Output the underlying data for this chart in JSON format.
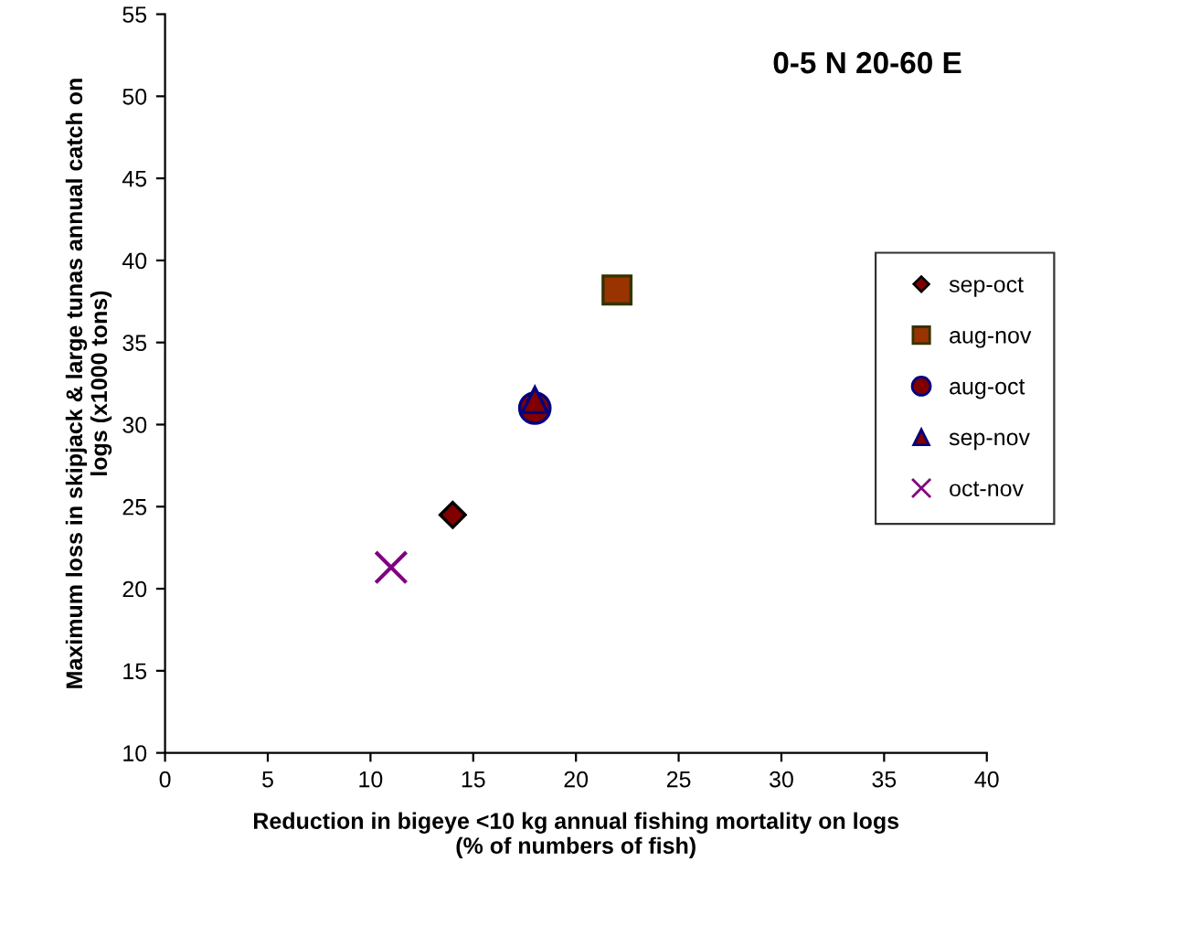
{
  "chart_data": {
    "type": "scatter",
    "title": "0-5 N 20-60 E",
    "xlabel": "Reduction in bigeye <10 kg annual fishing mortality on logs\n(% of numbers of fish)",
    "ylabel": "Maximum loss in skipjack & large tunas annual catch on\nlogs (x1000 tons)",
    "series": [
      {
        "name": "sep-oct",
        "color": "#800000",
        "marker": "diamond",
        "x": [
          14
        ],
        "values": [
          24.5
        ]
      },
      {
        "name": "aug-nov",
        "color": "#993300",
        "marker": "square",
        "x": [
          22
        ],
        "values": [
          38.2
        ]
      },
      {
        "name": "aug-oct",
        "color": "#800000",
        "marker": "circle",
        "x": [
          18
        ],
        "values": [
          31
        ]
      },
      {
        "name": "sep-nov",
        "color": "#800000",
        "marker": "triangle",
        "x": [
          18
        ],
        "values": [
          31.5
        ]
      },
      {
        "name": "oct-nov",
        "color": "#800080",
        "marker": "cross",
        "x": [
          11
        ],
        "values": [
          21.3
        ]
      }
    ],
    "xlim": [
      0,
      40
    ],
    "xticks": [
      0,
      5,
      10,
      15,
      20,
      25,
      30,
      35,
      40
    ],
    "ylim": [
      10,
      55
    ],
    "yticks": [
      10,
      15,
      20,
      25,
      30,
      35,
      40,
      45,
      50,
      55
    ],
    "grid": false,
    "legend": "right"
  }
}
